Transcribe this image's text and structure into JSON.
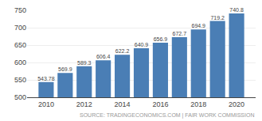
{
  "chart_data": {
    "type": "bar",
    "x": [
      2010,
      2011,
      2012,
      2013,
      2014,
      2015,
      2016,
      2017,
      2018,
      2019,
      2020
    ],
    "values": [
      543.78,
      569.9,
      589.3,
      606.4,
      622.2,
      640.9,
      656.9,
      672.7,
      694.9,
      719.2,
      740.8
    ],
    "color": "#4a7eb5",
    "xlim": [
      2009.0,
      2021.0
    ],
    "xticks": [
      2010,
      2012,
      2014,
      2016,
      2018,
      2020
    ],
    "ylim": [
      500,
      750
    ],
    "yticks": [
      500,
      550,
      600,
      650,
      700,
      750
    ],
    "grid": "y",
    "data_labels": true,
    "annotations": [
      "SOURCE: TRADINGECONOMICS.COM | FAIR WORK COMMISSION"
    ]
  }
}
